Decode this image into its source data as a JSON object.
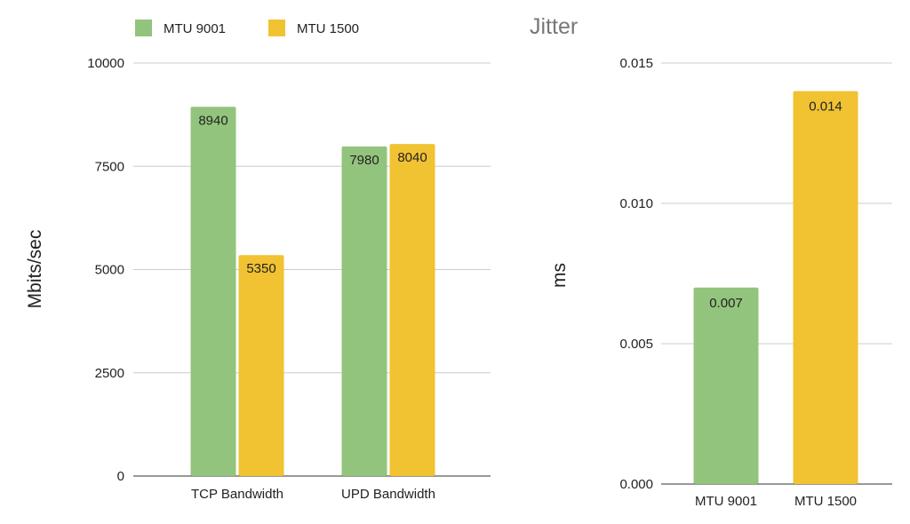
{
  "chart_data": [
    {
      "type": "bar",
      "title": "",
      "xlabel": "",
      "ylabel": "Mbits/sec",
      "categories": [
        "TCP Bandwidth",
        "UPD Bandwidth"
      ],
      "series": [
        {
          "name": "MTU 9001",
          "color": "#93c47d",
          "values": [
            8940,
            7980
          ],
          "labels": [
            "8940",
            "7980"
          ]
        },
        {
          "name": "MTU 1500",
          "color": "#f1c232",
          "values": [
            5350,
            8040
          ],
          "labels": [
            "5350",
            "8040"
          ]
        }
      ],
      "ylim": [
        0,
        10000
      ],
      "yticks": [
        0,
        2500,
        5000,
        7500,
        10000
      ],
      "ytick_labels": [
        "0",
        "2500",
        "5000",
        "7500",
        "10000"
      ],
      "grid": true,
      "legend": "top"
    },
    {
      "type": "bar",
      "title": "Jitter",
      "xlabel": "",
      "ylabel": "ms",
      "categories": [
        "MTU 9001",
        "MTU 1500"
      ],
      "values": [
        0.007,
        0.014
      ],
      "value_labels": [
        "0.007",
        "0.014"
      ],
      "colors": [
        "#93c47d",
        "#f1c232"
      ],
      "ylim": [
        0,
        0.015
      ],
      "yticks": [
        0,
        0.005,
        0.01,
        0.015
      ],
      "ytick_labels": [
        "0.000",
        "0.005",
        "0.010",
        "0.015"
      ],
      "grid": true
    }
  ]
}
